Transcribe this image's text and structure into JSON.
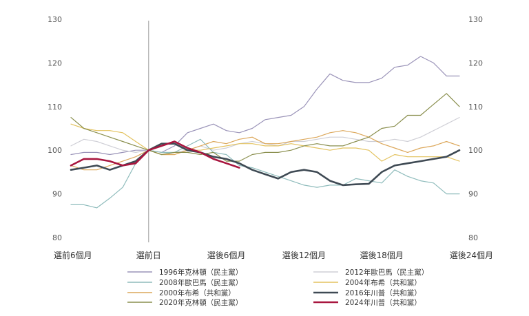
{
  "chart_data": {
    "type": "line",
    "ylim": [
      80,
      130
    ],
    "yticks": [
      80,
      90,
      100,
      110,
      120,
      130
    ],
    "x_range": [
      -6,
      24
    ],
    "x_ticks": [
      {
        "x": -6,
        "label": "選前6個月"
      },
      {
        "x": 0,
        "label": "選前日"
      },
      {
        "x": 6,
        "label": "選後6個月"
      },
      {
        "x": 12,
        "label": "選後12個月"
      },
      {
        "x": 18,
        "label": "選後18個月"
      },
      {
        "x": 24,
        "label": "選後24個月"
      }
    ],
    "reference_line_x": 0,
    "legend_position": "bottom",
    "series": [
      {
        "name": "1996年克林頓（民主黨）",
        "color": "#9a93b8",
        "width": 1.2,
        "x": [
          -6,
          -5,
          -4,
          -3,
          -2,
          -1,
          0,
          1,
          2,
          3,
          4,
          5,
          6,
          7,
          8,
          9,
          10,
          11,
          12,
          13,
          14,
          15,
          16,
          17,
          18,
          19,
          20,
          21,
          22,
          23,
          24
        ],
        "y": [
          99,
          99.5,
          99.5,
          99,
          99.5,
          100,
          100,
          99.5,
          101,
          104,
          105,
          106,
          104.5,
          104,
          105,
          107,
          107.5,
          108,
          110,
          114,
          117.5,
          116,
          115.5,
          115.5,
          116.5,
          119,
          119.5,
          121.5,
          120,
          117,
          117
        ]
      },
      {
        "name": "2012年歐巴馬（民主黨）",
        "color": "#cfcfd6",
        "width": 1.2,
        "x": [
          -6,
          -5,
          -4,
          -3,
          -2,
          -1,
          0,
          1,
          2,
          3,
          4,
          5,
          6,
          7,
          8,
          9,
          10,
          11,
          12,
          13,
          14,
          15,
          16,
          17,
          18,
          19,
          20,
          21,
          22,
          23,
          24
        ],
        "y": [
          101,
          102.5,
          102,
          101,
          100,
          99.5,
          100,
          99,
          99.5,
          100,
          101,
          100,
          100.5,
          101.5,
          102,
          101.5,
          101,
          102,
          102,
          102.5,
          103,
          103,
          102.5,
          102,
          102,
          102.5,
          102,
          103,
          104.5,
          106,
          107.5
        ]
      },
      {
        "name": "2008年歐巴馬（民主黨）",
        "color": "#8fbcbc",
        "width": 1.2,
        "x": [
          -6,
          -5,
          -4,
          -3,
          -2,
          -1,
          0,
          1,
          2,
          3,
          4,
          5,
          6,
          7,
          8,
          9,
          10,
          11,
          12,
          13,
          14,
          15,
          16,
          17,
          18,
          19,
          20,
          21,
          22,
          23,
          24
        ],
        "y": [
          87.5,
          87.5,
          86.8,
          89,
          91.5,
          97,
          100,
          99.5,
          99.5,
          101,
          102.5,
          99.5,
          99,
          96.5,
          96,
          95,
          94,
          93,
          92,
          91.5,
          92,
          92,
          93.5,
          93,
          92.5,
          95.5,
          94,
          93,
          92.5,
          90,
          90
        ]
      },
      {
        "name": "2004年布希（共和黨）",
        "color": "#e3c25e",
        "width": 1.2,
        "x": [
          -6,
          -5,
          -4,
          -3,
          -2,
          -1,
          0,
          1,
          2,
          3,
          4,
          5,
          6,
          7,
          8,
          9,
          10,
          11,
          12,
          13,
          14,
          15,
          16,
          17,
          18,
          19,
          20,
          21,
          22,
          23,
          24
        ],
        "y": [
          106,
          105,
          104.5,
          104.5,
          104,
          102,
          100,
          99,
          99,
          100,
          100,
          100.5,
          101,
          101.5,
          101.5,
          101,
          101,
          101.5,
          101,
          100.5,
          100,
          100.5,
          100.5,
          100,
          97.5,
          99,
          98.5,
          98.5,
          98.5,
          98.5,
          97.5
        ]
      },
      {
        "name": "2000年布希（共和黨）",
        "color": "#dca75a",
        "width": 1.2,
        "x": [
          -6,
          -5,
          -4,
          -3,
          -2,
          -1,
          0,
          1,
          2,
          3,
          4,
          5,
          6,
          7,
          8,
          9,
          10,
          11,
          12,
          13,
          14,
          15,
          16,
          17,
          18,
          19,
          20,
          21,
          22,
          23,
          24
        ],
        "y": [
          96.5,
          95.5,
          95.5,
          96.5,
          97.5,
          98.5,
          100,
          99,
          99,
          100,
          101,
          102,
          101.5,
          102.5,
          103,
          101.5,
          101.5,
          102,
          102.5,
          103,
          104,
          104.5,
          104,
          103,
          101.5,
          100.5,
          99.5,
          100.5,
          101,
          102,
          101
        ]
      },
      {
        "name": "2016年川普（共和黨）",
        "color": "#3f4a54",
        "width": 2.6,
        "x": [
          -6,
          -5,
          -4,
          -3,
          -2,
          -1,
          0,
          1,
          2,
          3,
          4,
          5,
          6,
          7,
          8,
          9,
          10,
          11,
          12,
          13,
          14,
          15,
          16,
          17,
          18,
          19,
          20,
          21,
          22,
          23,
          24
        ],
        "y": [
          95.5,
          96,
          96.5,
          95.5,
          96.5,
          97.5,
          100,
          101.5,
          101.5,
          100,
          99.5,
          98.5,
          98,
          97,
          95.5,
          94.5,
          93.5,
          95,
          95.5,
          95,
          93,
          92,
          92.2,
          92.3,
          95,
          96.5,
          97,
          97.5,
          98,
          98.5,
          100
        ]
      },
      {
        "name": "2020年克林頓（民主黨）",
        "color": "#8a8f4e",
        "width": 1.2,
        "x": [
          -6,
          -5,
          -4,
          -3,
          -2,
          -1,
          0,
          1,
          2,
          3,
          4,
          5,
          6,
          7,
          8,
          9,
          10,
          11,
          12,
          13,
          14,
          15,
          16,
          17,
          18,
          19,
          20,
          21,
          22,
          23,
          24
        ],
        "y": [
          107.5,
          105,
          104,
          103,
          102,
          101,
          100,
          99,
          99.5,
          99.5,
          99,
          99.5,
          97.5,
          97.5,
          99,
          99.5,
          99.5,
          100,
          101,
          101.5,
          101,
          101,
          102,
          103,
          105,
          105.5,
          108,
          108,
          110.5,
          113,
          110
        ]
      },
      {
        "name": "2024年川普（共和黨）",
        "color": "#a8163f",
        "width": 2.6,
        "x": [
          -6,
          -5,
          -4,
          -3,
          -2,
          -1,
          0,
          1,
          2,
          3,
          4,
          5,
          6,
          7
        ],
        "y": [
          96.5,
          98,
          98,
          97.5,
          96.5,
          97,
          100,
          101,
          102,
          100.5,
          99.5,
          98,
          97,
          96
        ]
      }
    ]
  }
}
